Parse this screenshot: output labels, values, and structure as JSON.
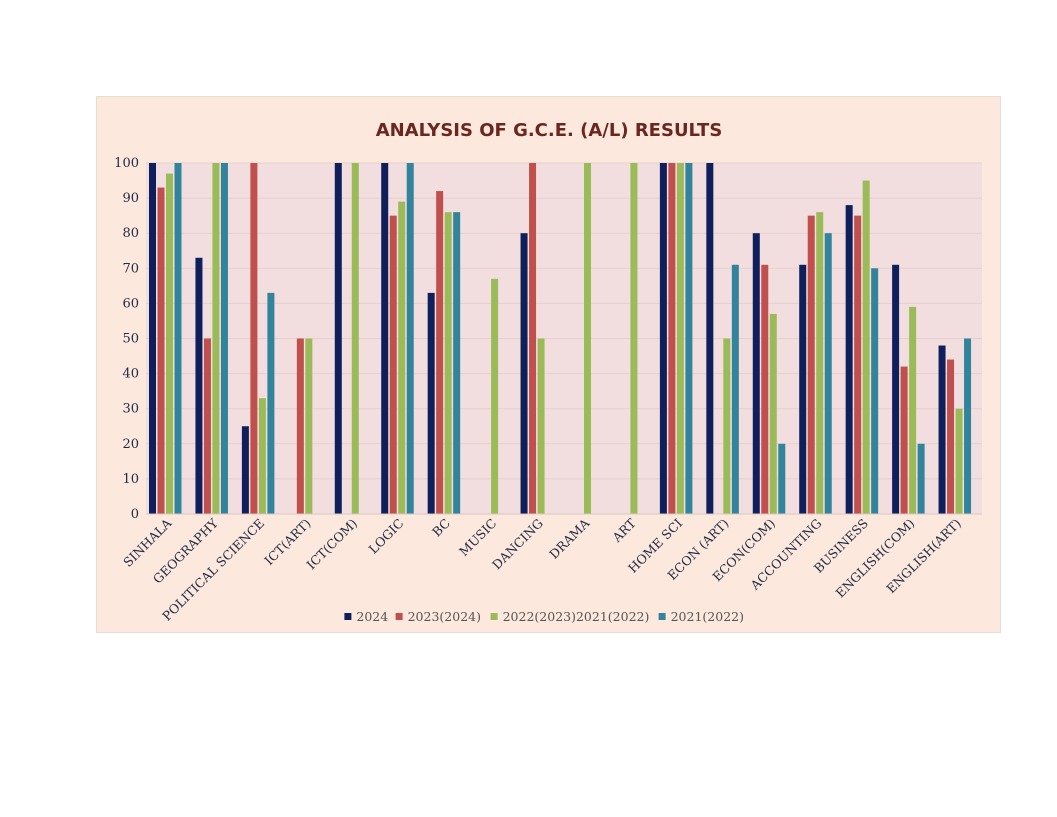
{
  "chart_data": {
    "type": "bar",
    "title": "ANALYSIS OF G.C.E. (A/L) RESULTS",
    "xlabel": "",
    "ylabel": "",
    "ylim": [
      0,
      100
    ],
    "yticks": [
      0,
      10,
      20,
      30,
      40,
      50,
      60,
      70,
      80,
      90,
      100
    ],
    "grid": true,
    "legend_position": "bottom",
    "categories": [
      "SINHALA",
      "GEOGRAPHY",
      "POLITICAL SCIENCE",
      "ICT(ART)",
      "ICT(COM)",
      "LOGIC",
      "BC",
      "MUSIC",
      "DANCING",
      "DRAMA",
      "ART",
      "HOME SCI",
      "ECON (ART)",
      "ECON(COM)",
      "ACCOUNTING",
      "BUSINESS",
      "ENGLISH(COM)",
      "ENGLISH(ART)"
    ],
    "series": [
      {
        "name": "2024",
        "color": "#0f1f5c",
        "values": [
          100,
          73,
          25,
          null,
          100,
          100,
          63,
          null,
          80,
          null,
          null,
          100,
          100,
          80,
          71,
          88,
          71,
          48
        ]
      },
      {
        "name": "2023(2024)",
        "color": "#c0504d",
        "values": [
          93,
          50,
          100,
          50,
          null,
          85,
          92,
          null,
          100,
          null,
          null,
          100,
          null,
          71,
          85,
          85,
          42,
          44
        ]
      },
      {
        "name": "2022(2023)2021(2022)",
        "color": "#9bbb59",
        "values": [
          97,
          100,
          33,
          50,
          100,
          89,
          86,
          67,
          50,
          100,
          100,
          100,
          50,
          57,
          86,
          95,
          59,
          30
        ]
      },
      {
        "name": "2021(2022)",
        "color": "#31849b",
        "values": [
          100,
          100,
          63,
          null,
          null,
          100,
          86,
          null,
          null,
          null,
          null,
          100,
          71,
          20,
          80,
          70,
          20,
          50
        ]
      }
    ]
  },
  "colors": {
    "frame_background": "#fce8dc",
    "plot_background": "#f2dede",
    "gridline": "#e7cfcf",
    "title": "#6b2620"
  }
}
